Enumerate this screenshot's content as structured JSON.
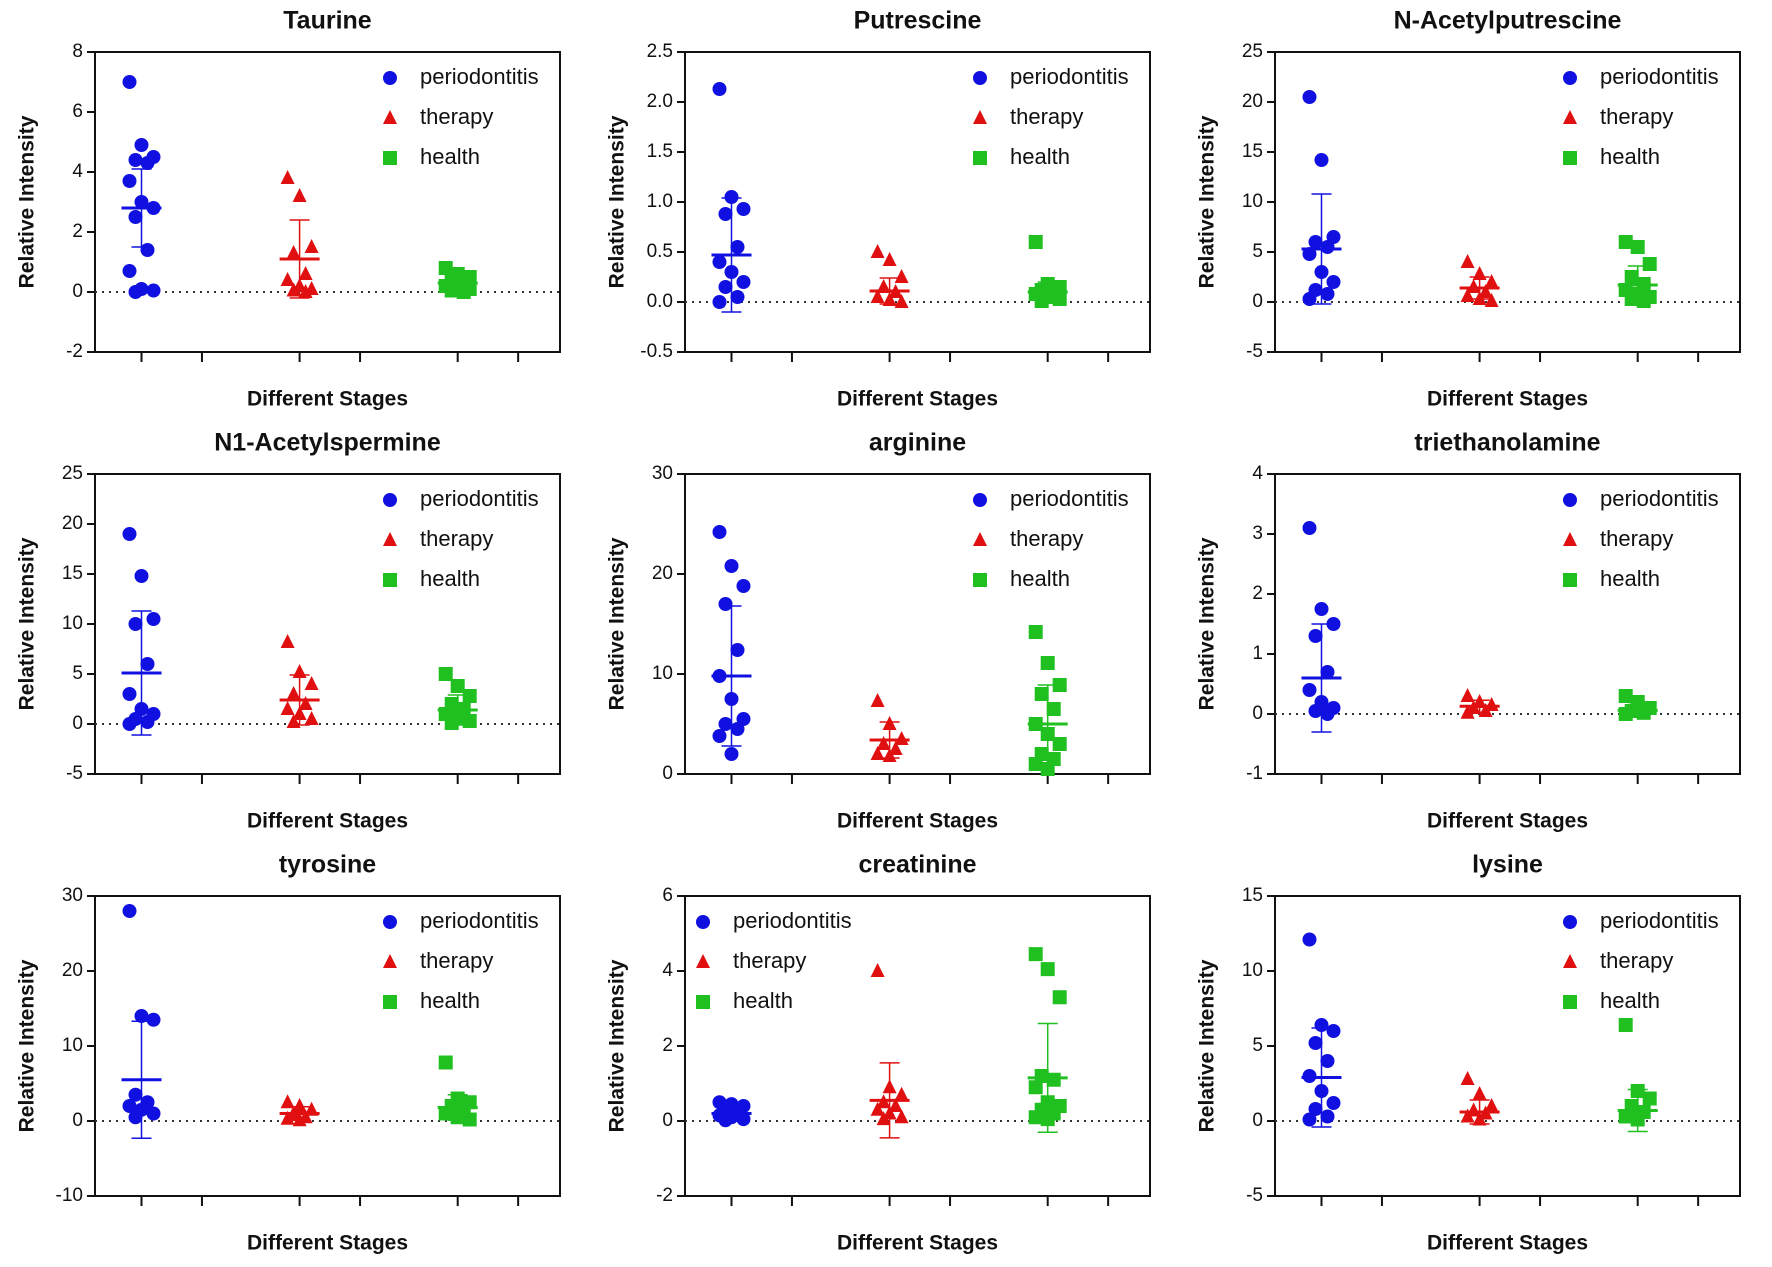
{
  "chart_data": [
    {
      "type": "strip",
      "title": "Taurine",
      "xlabel": "Different Stages",
      "ylabel": "Relative Intensity",
      "ylim": [
        -2,
        8
      ],
      "yticks": [
        -2,
        0,
        2,
        4,
        6,
        8
      ],
      "legend": "upper right",
      "series": [
        {
          "name": "periodontitis",
          "color": "#1010e0",
          "marker": "circle",
          "values": [
            7.0,
            4.9,
            4.5,
            4.4,
            4.3,
            3.7,
            3.0,
            2.8,
            2.5,
            1.4,
            0.7,
            0.1,
            0.05,
            0.0
          ],
          "mean": 2.8,
          "sd": 1.3
        },
        {
          "name": "therapy",
          "color": "#e01010",
          "marker": "triangle",
          "values": [
            3.8,
            3.2,
            1.5,
            1.3,
            0.6,
            0.4,
            0.2,
            0.1,
            0.05,
            0.0
          ],
          "mean": 1.1,
          "sd": 1.3
        },
        {
          "name": "health",
          "color": "#20c020",
          "marker": "square",
          "values": [
            0.8,
            0.6,
            0.5,
            0.4,
            0.3,
            0.2,
            0.15,
            0.1,
            0.05,
            0.0
          ],
          "mean": 0.3,
          "sd": 0.25
        }
      ]
    },
    {
      "type": "strip",
      "title": "Putrescine",
      "xlabel": "Different Stages",
      "ylabel": "Relative Intensity",
      "ylim": [
        -0.5,
        2.5
      ],
      "yticks": [
        -0.5,
        {
          "value": 0,
          "label": "0.0"
        },
        0.5,
        {
          "value": 1,
          "label": "1.0"
        },
        1.5,
        {
          "value": 2,
          "label": "2.0"
        },
        2.5
      ],
      "legend": "upper right",
      "series": [
        {
          "name": "periodontitis",
          "color": "#1010e0",
          "marker": "circle",
          "values": [
            2.13,
            1.05,
            0.93,
            0.88,
            0.55,
            0.4,
            0.3,
            0.2,
            0.15,
            0.05,
            0.0
          ],
          "mean": 0.47,
          "sd": 0.57
        },
        {
          "name": "therapy",
          "color": "#e01010",
          "marker": "triangle",
          "values": [
            0.5,
            0.42,
            0.25,
            0.15,
            0.1,
            0.05,
            0.02,
            0.0
          ],
          "mean": 0.11,
          "sd": 0.13
        },
        {
          "name": "health",
          "color": "#20c020",
          "marker": "square",
          "values": [
            0.6,
            0.18,
            0.15,
            0.12,
            0.1,
            0.08,
            0.05,
            0.03,
            0.01
          ],
          "mean": 0.1,
          "sd": 0.1
        }
      ]
    },
    {
      "type": "strip",
      "title": "N-Acetylputrescine",
      "xlabel": "Different Stages",
      "ylabel": "Relative Intensity",
      "ylim": [
        -5,
        25
      ],
      "yticks": [
        -5,
        0,
        5,
        10,
        15,
        20,
        25
      ],
      "legend": "upper right",
      "series": [
        {
          "name": "periodontitis",
          "color": "#1010e0",
          "marker": "circle",
          "values": [
            20.5,
            14.2,
            6.5,
            6.0,
            5.5,
            4.8,
            3.0,
            2.0,
            1.2,
            0.8,
            0.3
          ],
          "mean": 5.3,
          "sd": 5.5
        },
        {
          "name": "therapy",
          "color": "#e01010",
          "marker": "triangle",
          "values": [
            4.0,
            2.8,
            2.0,
            1.5,
            1.0,
            0.6,
            0.3,
            0.1
          ],
          "mean": 1.4,
          "sd": 1.1
        },
        {
          "name": "health",
          "color": "#20c020",
          "marker": "square",
          "values": [
            6.0,
            5.5,
            3.8,
            2.5,
            1.8,
            1.2,
            0.8,
            0.5,
            0.3,
            0.1
          ],
          "mean": 1.7,
          "sd": 1.9
        }
      ]
    },
    {
      "type": "strip",
      "title": "N1-Acetylspermine",
      "xlabel": "Different Stages",
      "ylabel": "Relative Intensity",
      "ylim": [
        -5,
        25
      ],
      "yticks": [
        -5,
        0,
        5,
        10,
        15,
        20,
        25
      ],
      "legend": "upper right",
      "series": [
        {
          "name": "periodontitis",
          "color": "#1010e0",
          "marker": "circle",
          "values": [
            19.0,
            14.8,
            10.5,
            10.0,
            6.0,
            3.0,
            1.5,
            1.0,
            0.5,
            0.2,
            0.0
          ],
          "mean": 5.1,
          "sd": 6.2
        },
        {
          "name": "therapy",
          "color": "#e01010",
          "marker": "triangle",
          "values": [
            8.2,
            5.2,
            4.0,
            3.0,
            2.0,
            1.5,
            1.0,
            0.5,
            0.2
          ],
          "mean": 2.4,
          "sd": 2.5
        },
        {
          "name": "health",
          "color": "#20c020",
          "marker": "square",
          "values": [
            5.0,
            3.8,
            2.8,
            2.0,
            1.5,
            1.0,
            0.6,
            0.3,
            0.1
          ],
          "mean": 1.4,
          "sd": 1.5
        }
      ]
    },
    {
      "type": "strip",
      "title": "arginine",
      "xlabel": "Different Stages",
      "ylabel": "Relative Intensity",
      "ylim": [
        0,
        30
      ],
      "yticks": [
        0,
        10,
        20,
        30
      ],
      "legend": "upper right",
      "series": [
        {
          "name": "periodontitis",
          "color": "#1010e0",
          "marker": "circle",
          "values": [
            24.2,
            20.8,
            18.8,
            17.0,
            12.4,
            9.8,
            7.5,
            5.5,
            5.0,
            4.5,
            3.8,
            2.0
          ],
          "mean": 9.8,
          "sd": 7.0
        },
        {
          "name": "therapy",
          "color": "#e01010",
          "marker": "triangle",
          "values": [
            7.3,
            5.0,
            3.5,
            3.0,
            2.5,
            2.0,
            1.8
          ],
          "mean": 3.4,
          "sd": 1.8
        },
        {
          "name": "health",
          "color": "#20c020",
          "marker": "square",
          "values": [
            14.2,
            11.1,
            8.9,
            8.0,
            6.5,
            5.0,
            4.0,
            3.0,
            2.0,
            1.5,
            1.0,
            0.5
          ],
          "mean": 5.0,
          "sd": 3.9
        }
      ]
    },
    {
      "type": "strip",
      "title": "triethanolamine",
      "xlabel": "Different Stages",
      "ylabel": "Relative Intensity",
      "ylim": [
        -1,
        4
      ],
      "yticks": [
        -1,
        0,
        1,
        2,
        3,
        4
      ],
      "legend": "upper right",
      "series": [
        {
          "name": "periodontitis",
          "color": "#1010e0",
          "marker": "circle",
          "values": [
            3.1,
            1.75,
            1.5,
            1.3,
            0.7,
            0.4,
            0.2,
            0.1,
            0.05,
            0.0
          ],
          "mean": 0.6,
          "sd": 0.9
        },
        {
          "name": "therapy",
          "color": "#e01010",
          "marker": "triangle",
          "values": [
            0.3,
            0.2,
            0.15,
            0.1,
            0.05,
            0.02
          ],
          "mean": 0.13,
          "sd": 0.1
        },
        {
          "name": "health",
          "color": "#20c020",
          "marker": "square",
          "values": [
            0.3,
            0.2,
            0.1,
            0.05,
            0.02,
            0.0
          ],
          "mean": 0.06,
          "sd": 0.1
        }
      ]
    },
    {
      "type": "strip",
      "title": "tyrosine",
      "xlabel": "Different Stages",
      "ylabel": "Relative Intensity",
      "ylim": [
        -10,
        30
      ],
      "yticks": [
        -10,
        0,
        10,
        20,
        30
      ],
      "legend": "upper right",
      "series": [
        {
          "name": "periodontitis",
          "color": "#1010e0",
          "marker": "circle",
          "values": [
            28.0,
            14.0,
            13.5,
            3.5,
            2.5,
            2.0,
            1.5,
            1.0,
            0.5
          ],
          "mean": 5.5,
          "sd": 7.8
        },
        {
          "name": "therapy",
          "color": "#e01010",
          "marker": "triangle",
          "values": [
            2.5,
            2.0,
            1.5,
            1.0,
            0.5,
            0.3,
            0.1
          ],
          "mean": 1.0,
          "sd": 0.9
        },
        {
          "name": "health",
          "color": "#20c020",
          "marker": "square",
          "values": [
            7.8,
            3.0,
            2.5,
            2.0,
            1.5,
            1.0,
            0.5,
            0.2
          ],
          "mean": 1.8,
          "sd": 1.7
        }
      ]
    },
    {
      "type": "strip",
      "title": "creatinine",
      "xlabel": "Different Stages",
      "ylabel": "Relative Intensity",
      "ylim": [
        -2,
        6
      ],
      "yticks": [
        -2,
        0,
        2,
        4,
        6
      ],
      "legend": "upper left",
      "series": [
        {
          "name": "periodontitis",
          "color": "#1010e0",
          "marker": "circle",
          "values": [
            0.5,
            0.45,
            0.4,
            0.3,
            0.2,
            0.15,
            0.1,
            0.05,
            0.02
          ],
          "mean": 0.2,
          "sd": 0.2
        },
        {
          "name": "therapy",
          "color": "#e01010",
          "marker": "triangle",
          "values": [
            4.0,
            0.9,
            0.7,
            0.5,
            0.4,
            0.3,
            0.2,
            0.1,
            0.05
          ],
          "mean": 0.55,
          "sd": 1.0
        },
        {
          "name": "health",
          "color": "#20c020",
          "marker": "square",
          "values": [
            4.45,
            4.05,
            3.3,
            1.2,
            1.1,
            0.9,
            0.5,
            0.4,
            0.3,
            0.2,
            0.1,
            0.05
          ],
          "mean": 1.15,
          "sd": 1.45
        }
      ]
    },
    {
      "type": "strip",
      "title": "lysine",
      "xlabel": "Different Stages",
      "ylabel": "Relative Intensity",
      "ylim": [
        -5,
        15
      ],
      "yticks": [
        -5,
        0,
        5,
        10,
        15
      ],
      "legend": "upper right",
      "series": [
        {
          "name": "periodontitis",
          "color": "#1010e0",
          "marker": "circle",
          "values": [
            12.1,
            6.4,
            6.0,
            5.2,
            4.0,
            3.0,
            2.0,
            1.2,
            0.8,
            0.3,
            0.1
          ],
          "mean": 2.9,
          "sd": 3.3
        },
        {
          "name": "therapy",
          "color": "#e01010",
          "marker": "triangle",
          "values": [
            2.8,
            1.8,
            1.0,
            0.7,
            0.5,
            0.3,
            0.1
          ],
          "mean": 0.6,
          "sd": 0.8
        },
        {
          "name": "health",
          "color": "#20c020",
          "marker": "square",
          "values": [
            6.4,
            2.0,
            1.5,
            1.0,
            0.6,
            0.3,
            0.1
          ],
          "mean": 0.7,
          "sd": 1.4
        }
      ]
    }
  ]
}
